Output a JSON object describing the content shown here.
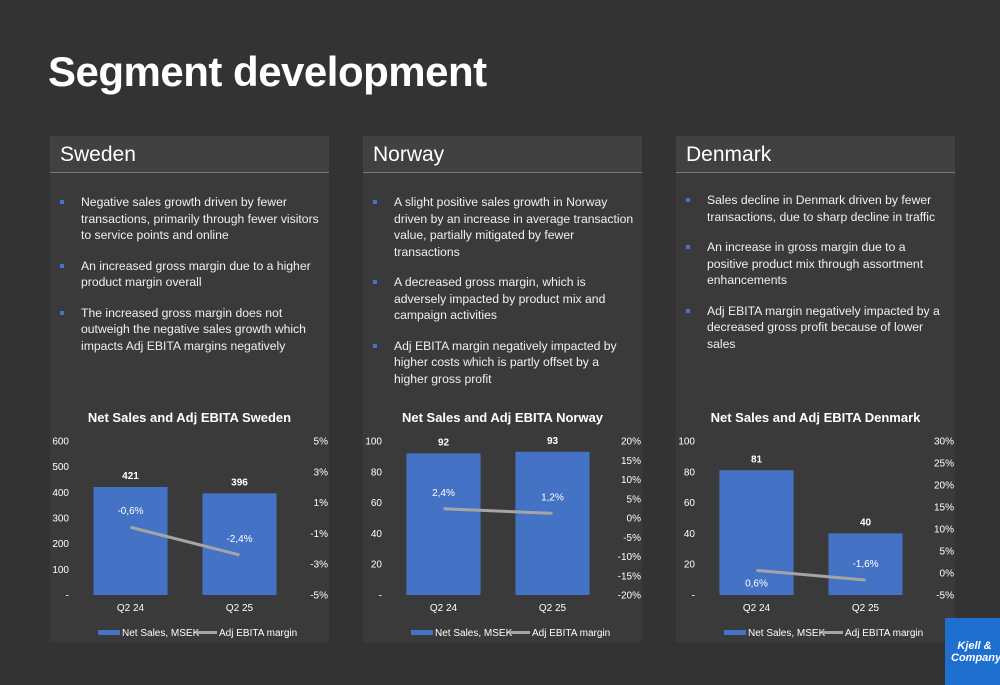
{
  "page": {
    "title": "Segment development",
    "logo_text": "Kjell & Company",
    "colors": {
      "background": "#333333",
      "bar": "#4472c4",
      "line": "#a5a5a5",
      "accent": "#1f6fd1"
    }
  },
  "segments": [
    {
      "name": "Sweden",
      "bullets": [
        "Negative sales growth driven by fewer transactions, primarily through fewer visitors to service points and online",
        "An increased gross margin due to a higher product margin overall",
        "The increased gross margin does not outweigh the negative sales growth which impacts Adj EBITA margins negatively"
      ]
    },
    {
      "name": "Norway",
      "bullets": [
        "A slight positive sales growth in Norway driven by an increase in average transaction value, partially mitigated by fewer transactions",
        "A decreased gross margin, which is adversely impacted by product mix and campaign activities",
        "Adj EBITA margin negatively impacted by higher costs which is partly offset by a higher gross profit"
      ]
    },
    {
      "name": "Denmark",
      "bullets": [
        "Sales decline in Denmark driven by fewer transactions, due to sharp decline in traffic",
        "An increase in gross margin due to a positive product mix through assortment enhancements",
        "Adj EBITA margin negatively impacted by a decreased gross profit because of lower sales"
      ]
    }
  ],
  "chart_data": [
    {
      "type": "bar",
      "title": "Net Sales and Adj EBITA Sweden",
      "categories": [
        "Q2 24",
        "Q2 25"
      ],
      "series": [
        {
          "name": "Net Sales, MSEK",
          "type": "bar",
          "axis": "left",
          "values": [
            421,
            396
          ],
          "labels": [
            "421",
            "396"
          ]
        },
        {
          "name": "Adj EBITA margin",
          "type": "line",
          "axis": "right",
          "values": [
            -0.6,
            -2.4
          ],
          "labels": [
            "-0,6%",
            "-2,4%"
          ]
        }
      ],
      "left_axis": {
        "min": 0,
        "max": 600,
        "ticks": [
          0,
          100,
          200,
          300,
          400,
          500,
          600
        ],
        "tick_labels": [
          "-",
          "100",
          "200",
          "300",
          "400",
          "500",
          "600"
        ]
      },
      "right_axis": {
        "min": -5,
        "max": 5,
        "ticks": [
          -5,
          -3,
          -1,
          1,
          3,
          5
        ],
        "tick_labels": [
          "-5%",
          "-3%",
          "-1%",
          "1%",
          "3%",
          "5%"
        ]
      },
      "legend_position": "bottom",
      "grid": false
    },
    {
      "type": "bar",
      "title": "Net Sales and Adj EBITA Norway",
      "categories": [
        "Q2 24",
        "Q2 25"
      ],
      "series": [
        {
          "name": "Net Sales, MSEK",
          "type": "bar",
          "axis": "left",
          "values": [
            92,
            93
          ],
          "labels": [
            "92",
            "93"
          ]
        },
        {
          "name": "Adj EBITA margin",
          "type": "line",
          "axis": "right",
          "values": [
            2.4,
            1.2
          ],
          "labels": [
            "2,4%",
            "1,2%"
          ]
        }
      ],
      "left_axis": {
        "min": 0,
        "max": 100,
        "ticks": [
          0,
          20,
          40,
          60,
          80,
          100
        ],
        "tick_labels": [
          "-",
          "20",
          "40",
          "60",
          "80",
          "100"
        ]
      },
      "right_axis": {
        "min": -20,
        "max": 20,
        "ticks": [
          -20,
          -15,
          -10,
          -5,
          0,
          5,
          10,
          15,
          20
        ],
        "tick_labels": [
          "-20%",
          "-15%",
          "-10%",
          "-5%",
          "0%",
          "5%",
          "10%",
          "15%",
          "20%"
        ]
      },
      "legend_position": "bottom",
      "grid": false
    },
    {
      "type": "bar",
      "title": "Net Sales and Adj EBITA Denmark",
      "categories": [
        "Q2 24",
        "Q2 25"
      ],
      "series": [
        {
          "name": "Net Sales, MSEK",
          "type": "bar",
          "axis": "left",
          "values": [
            81,
            40
          ],
          "labels": [
            "81",
            "40"
          ]
        },
        {
          "name": "Adj EBITA margin",
          "type": "line",
          "axis": "right",
          "values": [
            0.6,
            -1.6
          ],
          "labels": [
            "0,6%",
            "-1,6%"
          ]
        }
      ],
      "left_axis": {
        "min": 0,
        "max": 100,
        "ticks": [
          0,
          20,
          40,
          60,
          80,
          100
        ],
        "tick_labels": [
          "-",
          "20",
          "40",
          "60",
          "80",
          "100"
        ]
      },
      "right_axis": {
        "min": -5,
        "max": 30,
        "ticks": [
          -5,
          0,
          5,
          10,
          15,
          20,
          25,
          30
        ],
        "tick_labels": [
          "-5%",
          "0%",
          "5%",
          "10%",
          "15%",
          "20%",
          "25%",
          "30%"
        ]
      },
      "legend_position": "bottom",
      "grid": false
    }
  ]
}
